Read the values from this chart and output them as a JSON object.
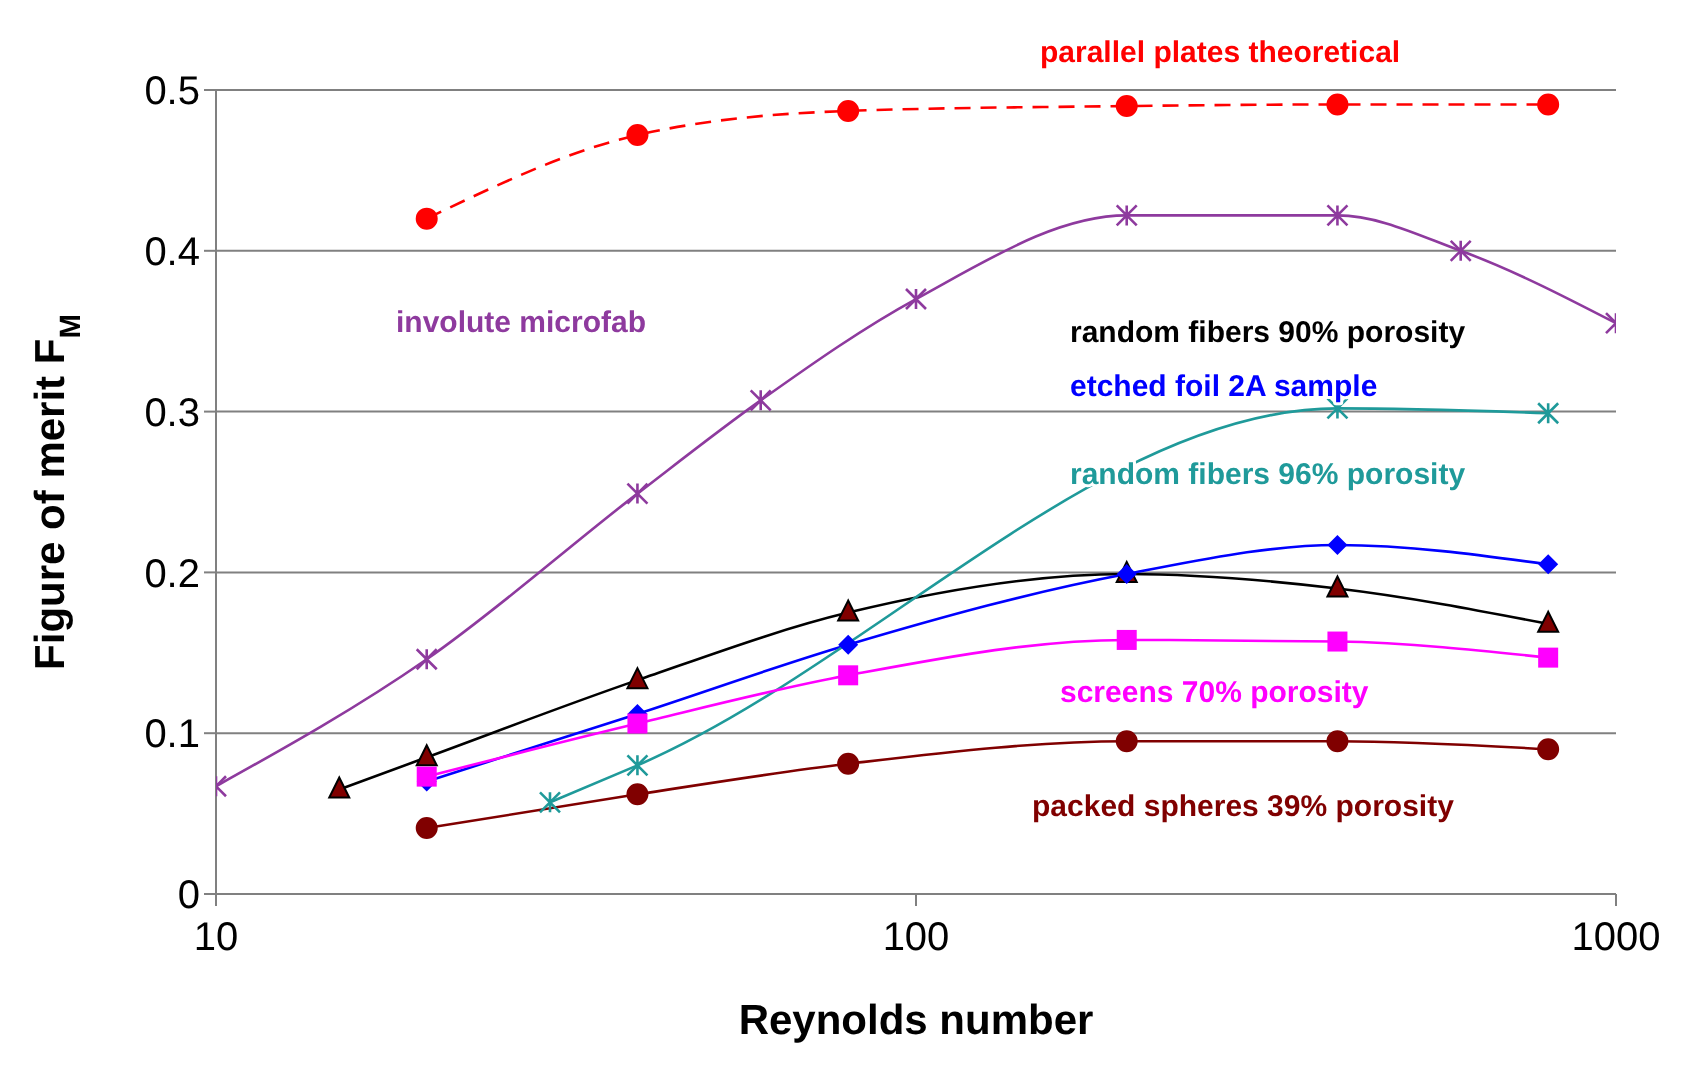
{
  "chart_data": {
    "type": "line",
    "xlabel": "Reynolds number",
    "ylabel": "Figure of merit F$_{M}$",
    "log": "x",
    "xlim": [
      10,
      1000
    ],
    "xticks": [
      10,
      100,
      1000
    ],
    "ylim": [
      0,
      0.5
    ],
    "yticks": [
      0,
      0.1,
      0.2,
      0.3,
      0.4,
      0.5
    ],
    "grid": "y",
    "legend": false,
    "series": [
      {
        "name": "parallel plates theoretical",
        "color": "#ff0000",
        "marker": "circle",
        "line_style": "dashed",
        "x": [
          20,
          40,
          80,
          200,
          400,
          800
        ],
        "values": [
          0.42,
          0.472,
          0.487,
          0.49,
          0.491,
          0.491
        ]
      },
      {
        "name": "involute microfab",
        "color": "#8e3a9e",
        "marker": "cross",
        "x": [
          10,
          20,
          40,
          60,
          100,
          200,
          400,
          600,
          1000
        ],
        "values": [
          0.067,
          0.146,
          0.249,
          0.307,
          0.37,
          0.422,
          0.422,
          0.4,
          0.355
        ]
      },
      {
        "name": "random fibers 90% porosity",
        "color": "#000000",
        "marker": "triangle",
        "x": [
          15,
          20,
          40,
          80,
          200,
          400,
          800
        ],
        "values": [
          0.065,
          0.085,
          0.133,
          0.175,
          0.199,
          0.19,
          0.168
        ]
      },
      {
        "name": "etched foil 2A sample",
        "color": "#0000ff",
        "marker": "diamond",
        "x": [
          20,
          40,
          80,
          200,
          400,
          800
        ],
        "values": [
          0.07,
          0.112,
          0.155,
          0.199,
          0.217,
          0.205
        ]
      },
      {
        "name": "random fibers 96% porosity",
        "color": "#1f9a9a",
        "marker": "cross",
        "x": [
          30,
          40,
          400,
          800
        ],
        "values": [
          0.057,
          0.08,
          0.302,
          0.299
        ]
      },
      {
        "name": "screens 70% porosity",
        "color": "#ff00ff",
        "marker": "square",
        "x": [
          20,
          40,
          80,
          200,
          400,
          800
        ],
        "values": [
          0.073,
          0.106,
          0.136,
          0.158,
          0.157,
          0.147
        ]
      },
      {
        "name": "packed spheres 39% porosity",
        "color": "#800000",
        "marker": "circle",
        "x": [
          20,
          40,
          80,
          200,
          400,
          800
        ],
        "values": [
          0.041,
          0.062,
          0.081,
          0.095,
          0.095,
          0.09
        ]
      }
    ]
  }
}
